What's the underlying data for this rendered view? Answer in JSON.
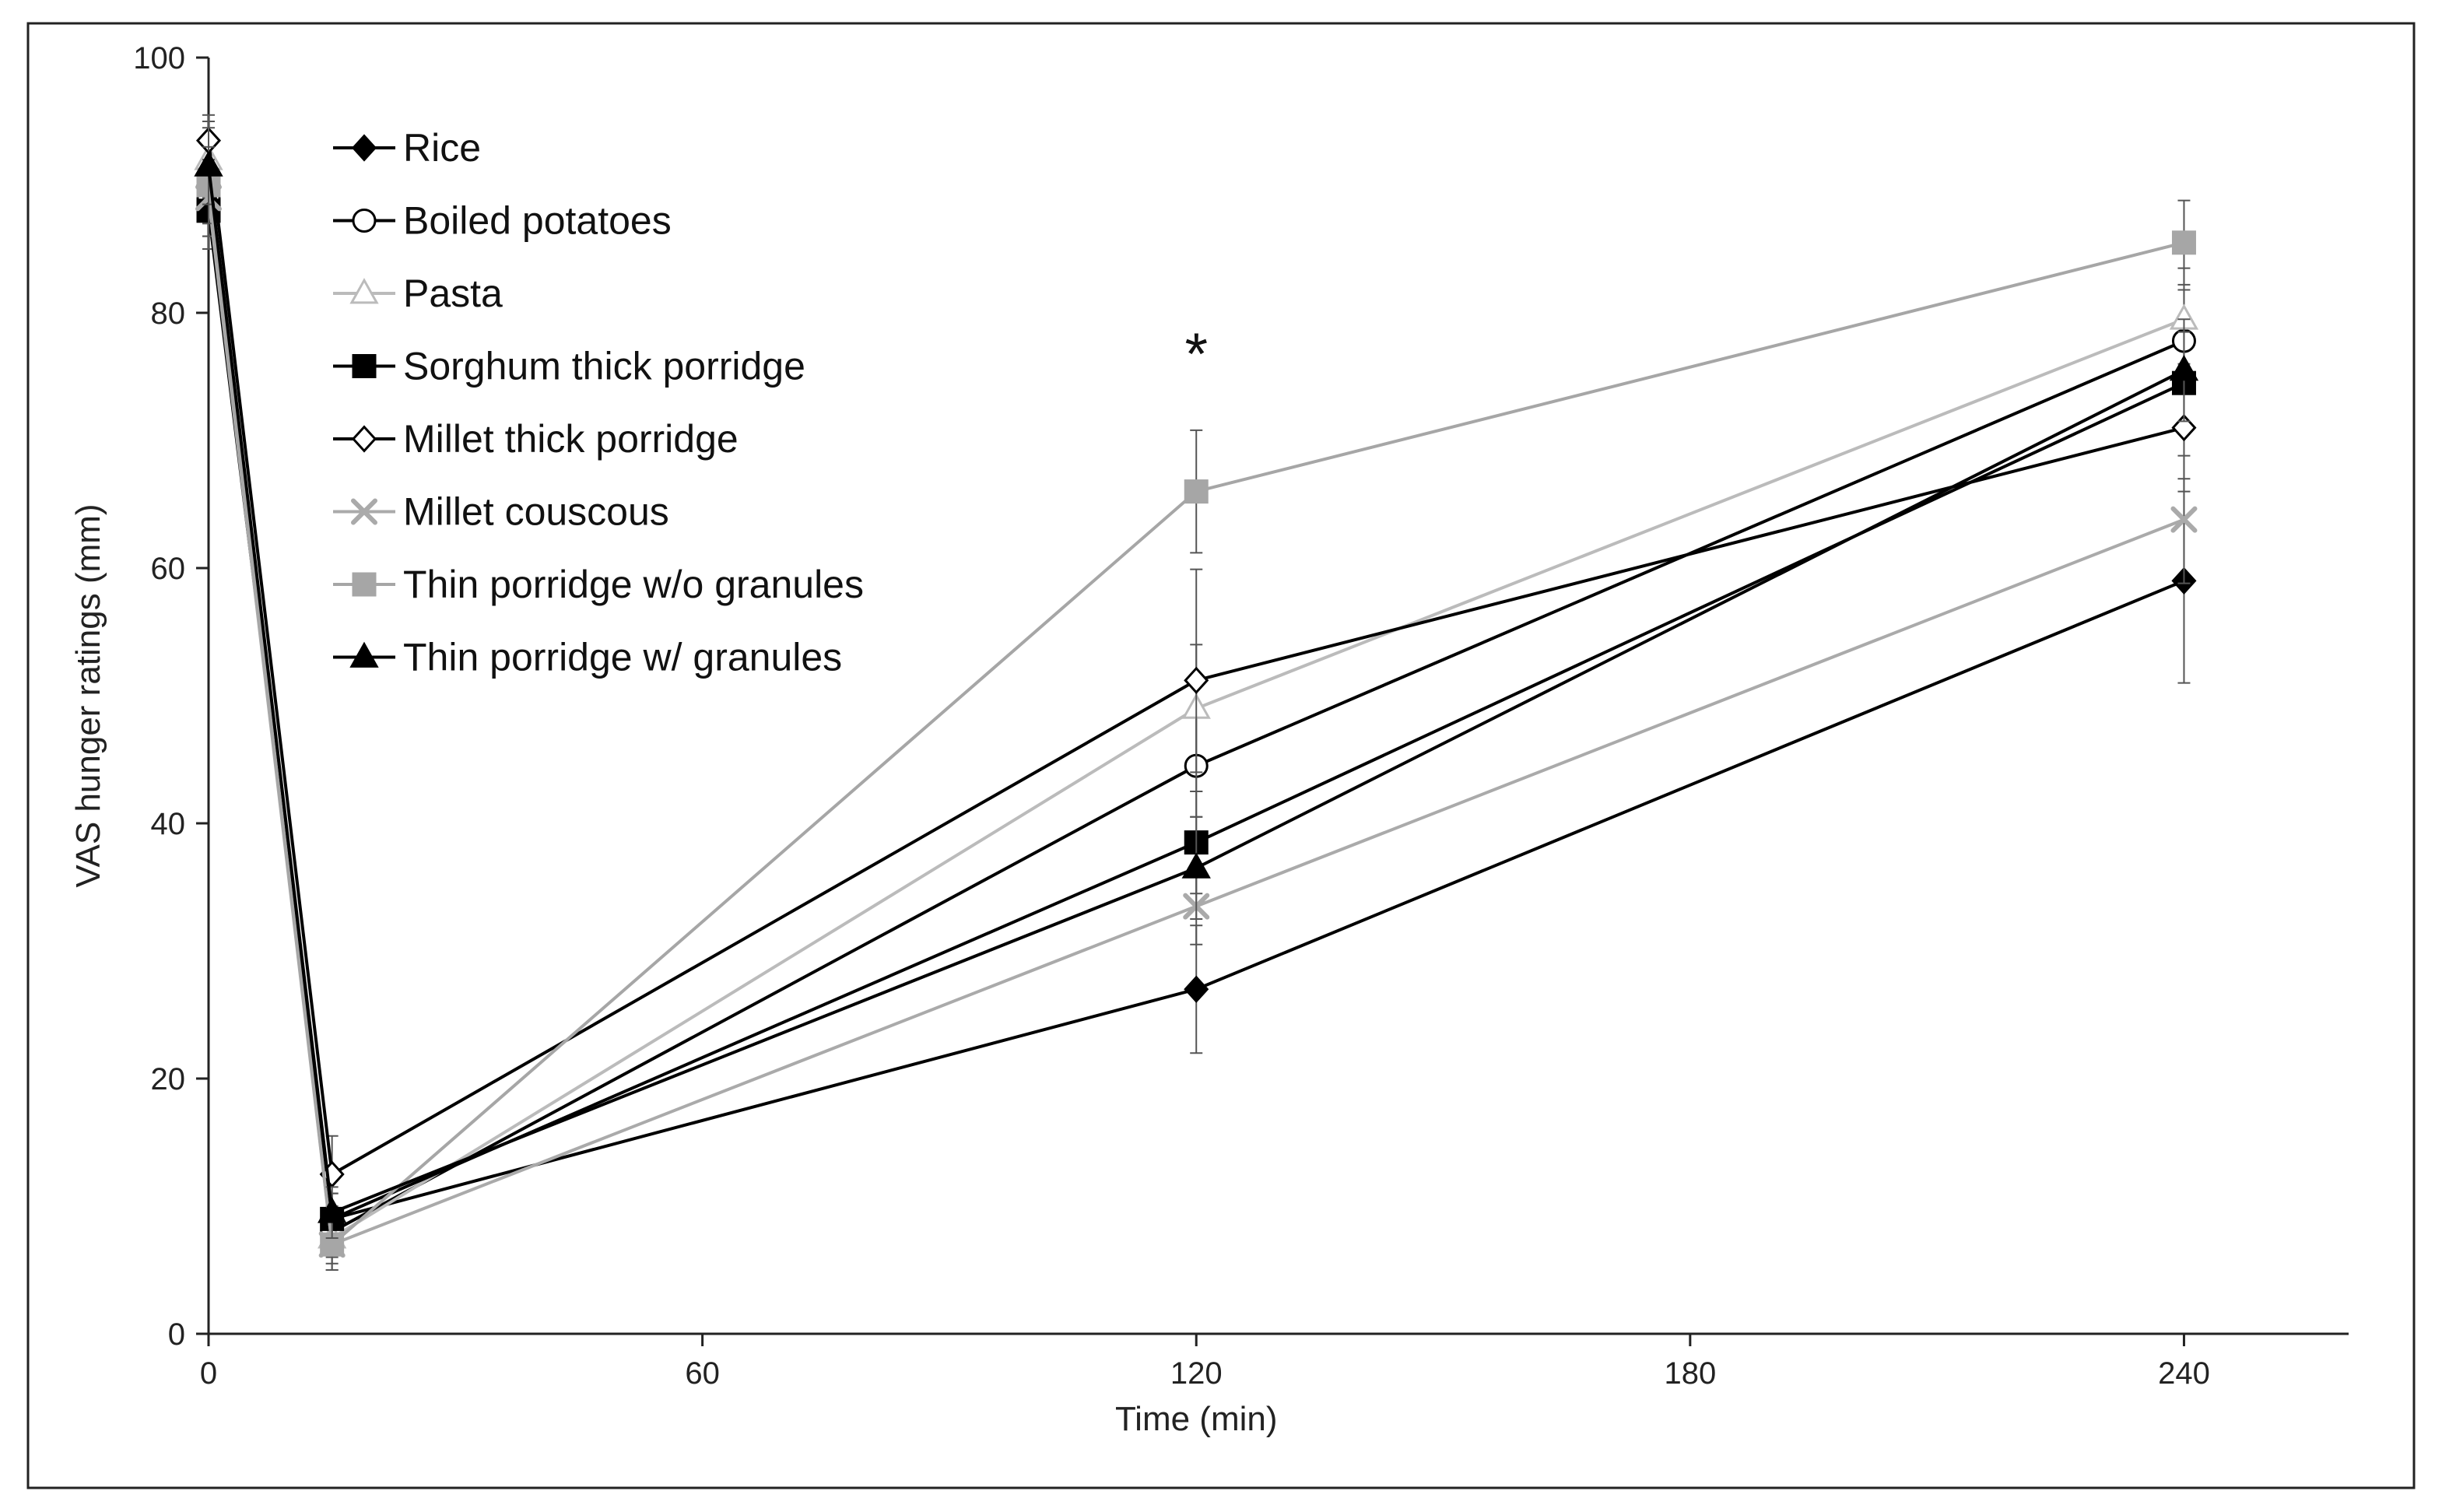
{
  "chart_data": {
    "type": "line",
    "title": "",
    "xlabel": "Time (min)",
    "ylabel": "VAS hunger ratings (mm)",
    "xlim": [
      0,
      260
    ],
    "ylim": [
      0,
      100
    ],
    "x_ticks": [
      0,
      60,
      120,
      180,
      240
    ],
    "y_ticks": [
      0,
      20,
      40,
      60,
      80,
      100
    ],
    "x": [
      0,
      15,
      120,
      240
    ],
    "grid": false,
    "legend_position": "top-left",
    "series": [
      {
        "name": "Rice",
        "color": "#000000",
        "marker": "diamond-filled",
        "values": [
          90,
          9,
          27,
          59
        ],
        "errors": [
          3,
          2,
          5,
          8
        ]
      },
      {
        "name": "Boiled potatoes",
        "color": "#000000",
        "marker": "circle-open",
        "values": [
          89,
          8,
          44.5,
          77.8
        ],
        "errors": [
          3,
          2,
          4,
          4
        ]
      },
      {
        "name": "Pasta",
        "color": "#bbbbbb",
        "marker": "triangle-open",
        "values": [
          92,
          7.5,
          49,
          79.5
        ],
        "errors": [
          3,
          2,
          5,
          4
        ]
      },
      {
        "name": "Sorghum thick porridge",
        "color": "#000000",
        "marker": "square-filled",
        "values": [
          88,
          9,
          38.5,
          74.5
        ],
        "errors": [
          3,
          2,
          4,
          4
        ]
      },
      {
        "name": "Millet thick porridge",
        "color": "#000000",
        "marker": "diamond-open",
        "values": [
          93.5,
          12.5,
          51.2,
          71
        ],
        "errors": [
          2,
          3,
          8.7,
          5
        ]
      },
      {
        "name": "Millet couscous",
        "color": "#aaaaaa",
        "marker": "x",
        "values": [
          89,
          7,
          33.5,
          63.8
        ],
        "errors": [
          3,
          2,
          3,
          5
        ]
      },
      {
        "name": "Thin porridge w/o granules",
        "color": "#a6a6a6",
        "marker": "square-filled",
        "values": [
          90,
          7,
          66,
          85.5
        ],
        "errors": [
          3,
          2,
          4.8,
          3.3
        ]
      },
      {
        "name": "Thin porridge w/ granules",
        "color": "#000000",
        "marker": "triangle-filled",
        "values": [
          91.5,
          9.5,
          36.5,
          75.5
        ],
        "errors": [
          3,
          2,
          4,
          4
        ]
      }
    ],
    "annotations": [
      {
        "text": "*",
        "x": 120,
        "y": 77
      }
    ]
  }
}
